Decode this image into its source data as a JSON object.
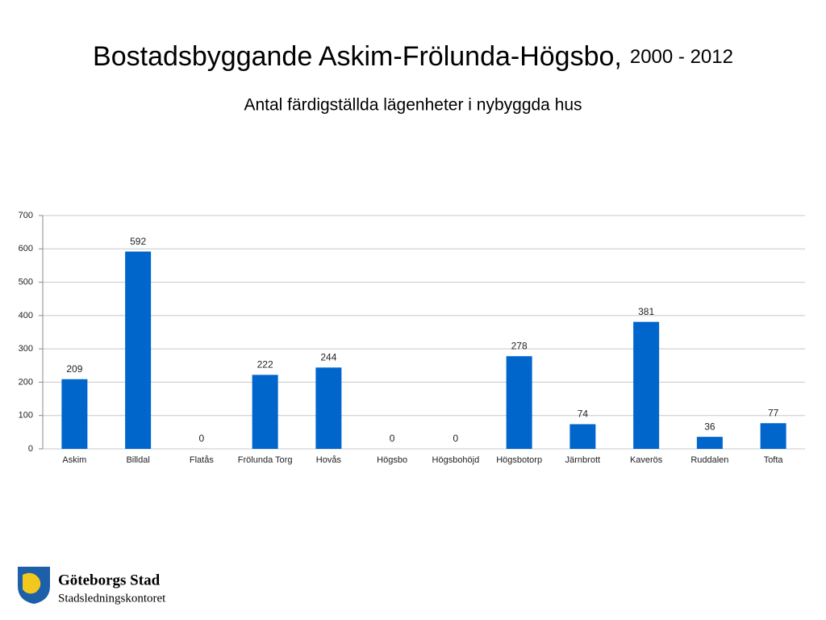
{
  "chart_data": {
    "type": "bar",
    "title": "Bostadsbyggande Askim-Frölunda-Högsbo,",
    "title_period": "2000 - 2012",
    "subtitle": "Antal färdigställda lägenheter i nybyggda hus",
    "categories": [
      "Askim",
      "Billdal",
      "Flatås",
      "Frölunda Torg",
      "Hovås",
      "Högsbo",
      "Högsbohöjd",
      "Högsbotorp",
      "Järnbrott",
      "Kaverös",
      "Ruddalen",
      "Tofta"
    ],
    "values": [
      209,
      592,
      0,
      222,
      244,
      0,
      0,
      278,
      74,
      381,
      36,
      77
    ],
    "color": "#0066cc",
    "ylim": [
      0,
      700
    ],
    "yticks": [
      0,
      100,
      200,
      300,
      400,
      500,
      600,
      700
    ],
    "grid": true
  },
  "logo": {
    "name": "Göteborgs Stad",
    "department": "Stadsledningskontoret"
  }
}
